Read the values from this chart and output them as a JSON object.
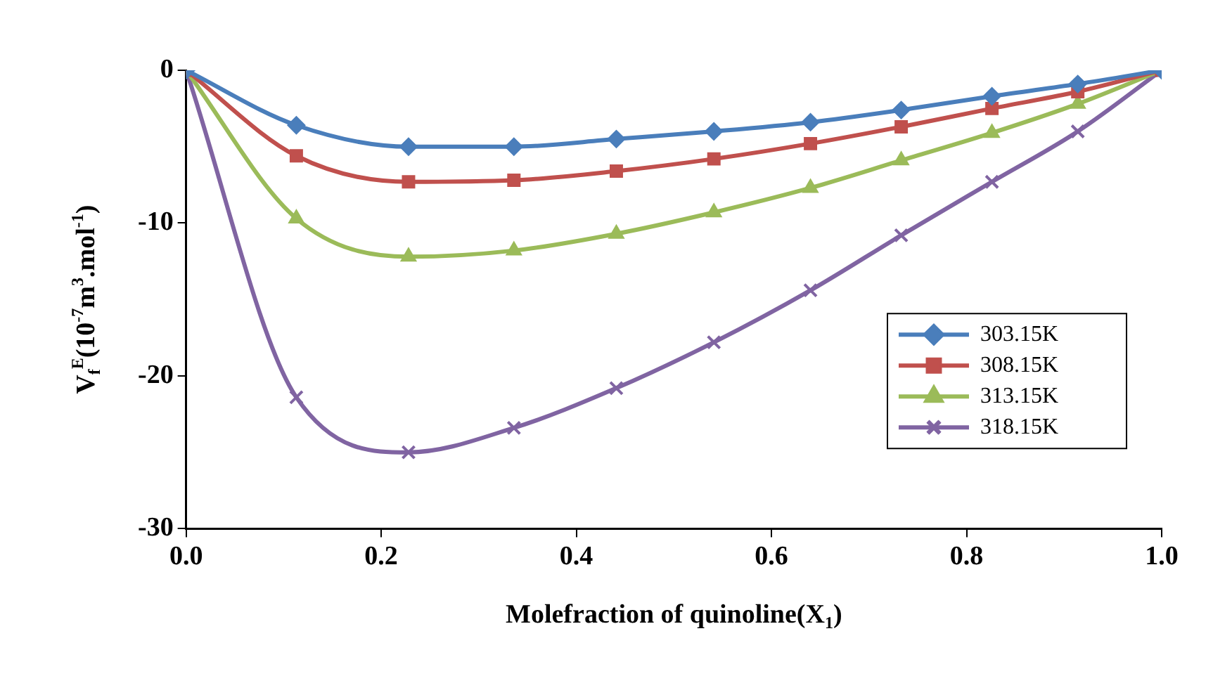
{
  "chart_data": {
    "type": "line",
    "xlabel": "Molefraction of quinoline(X$_{1}$)",
    "ylabel": "V$_{f}$$^{E}$(10$^{-7}$m$^{3}$.mol$^{-1}$)",
    "x": [
      0,
      0.113,
      0.228,
      0.336,
      0.441,
      0.541,
      0.64,
      0.733,
      0.826,
      0.914,
      1.0
    ],
    "series": [
      {
        "name": "303.15K",
        "color": "#4a7ebb",
        "marker": "diamond",
        "values": [
          0,
          -3.6,
          -5.0,
          -5.0,
          -4.5,
          -4.0,
          -3.4,
          -2.6,
          -1.7,
          -0.9,
          0
        ]
      },
      {
        "name": "308.15K",
        "color": "#c0504d",
        "marker": "square",
        "values": [
          0,
          -5.6,
          -7.3,
          -7.2,
          -6.6,
          -5.8,
          -4.8,
          -3.7,
          -2.5,
          -1.4,
          0
        ]
      },
      {
        "name": "313.15K",
        "color": "#9bbb59",
        "marker": "triangle",
        "values": [
          0,
          -9.7,
          -12.2,
          -11.8,
          -10.7,
          -9.3,
          -7.7,
          -5.9,
          -4.1,
          -2.2,
          0
        ]
      },
      {
        "name": "318.15K",
        "color": "#8064a2",
        "marker": "cross",
        "values": [
          0,
          -21.4,
          -25.0,
          -23.4,
          -20.8,
          -17.8,
          -14.4,
          -10.8,
          -7.3,
          -4.0,
          0
        ]
      }
    ],
    "xlim": [
      0,
      1
    ],
    "xticks": [
      {
        "value": 0,
        "label": "0.0"
      },
      {
        "value": 0.2,
        "label": "0.2"
      },
      {
        "value": 0.4,
        "label": "0.4"
      },
      {
        "value": 0.6,
        "label": "0.6"
      },
      {
        "value": 0.8,
        "label": "0.8"
      },
      {
        "value": 1,
        "label": "1.0"
      }
    ],
    "ylim": [
      -30,
      0
    ],
    "yticks": [
      -30,
      -20,
      -10,
      0
    ],
    "grid": false,
    "legend": "right",
    "line_style": "solid"
  }
}
